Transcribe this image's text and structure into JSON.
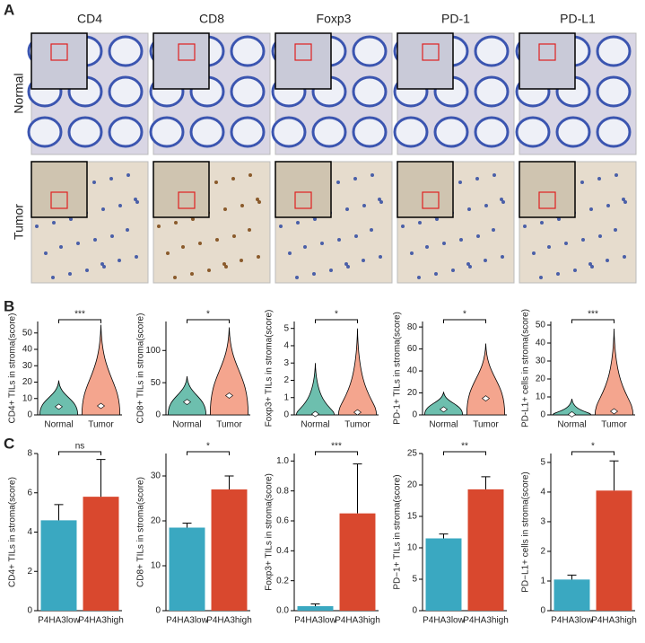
{
  "panel_a": {
    "label": "A",
    "columns": [
      "CD4",
      "CD8",
      "Foxp3",
      "PD-1",
      "PD-L1"
    ],
    "rows": [
      "Normal",
      "Tumor"
    ]
  },
  "panel_b": {
    "label": "B"
  },
  "panel_c": {
    "label": "C"
  },
  "chart_data": [
    {
      "type": "violin",
      "ylabel": "CD4+ TILs in stroma(score)",
      "categories": [
        "Normal",
        "Tumor"
      ],
      "colors": [
        "#6dbfae",
        "#f4a58e"
      ],
      "means": [
        5,
        5.5
      ],
      "maxima": [
        21,
        55
      ],
      "ylim": [
        0,
        57
      ],
      "yticks": [
        0,
        10,
        20,
        30,
        40,
        50
      ],
      "significance": "***"
    },
    {
      "type": "violin",
      "ylabel": "CD8+ TILs in stroma(score)",
      "categories": [
        "Normal",
        "Tumor"
      ],
      "colors": [
        "#6dbfae",
        "#f4a58e"
      ],
      "means": [
        20,
        30
      ],
      "maxima": [
        60,
        136
      ],
      "ylim": [
        0,
        145
      ],
      "yticks": [
        0,
        50,
        100
      ],
      "significance": "*"
    },
    {
      "type": "violin",
      "ylabel": "Foxp3+ TILs in stroma(score)",
      "categories": [
        "Normal",
        "Tumor"
      ],
      "colors": [
        "#6dbfae",
        "#f4a58e"
      ],
      "means": [
        0.05,
        0.15
      ],
      "maxima": [
        3,
        5
      ],
      "ylim": [
        0,
        5.4
      ],
      "yticks": [
        0,
        1,
        2,
        3,
        4,
        5
      ],
      "significance": "*"
    },
    {
      "type": "violin",
      "ylabel": "PD-1+ TILs in stroma(score)",
      "categories": [
        "Normal",
        "Tumor"
      ],
      "colors": [
        "#6dbfae",
        "#f4a58e"
      ],
      "means": [
        5,
        15
      ],
      "maxima": [
        21,
        65
      ],
      "ylim": [
        0,
        85
      ],
      "yticks": [
        0,
        20,
        40,
        60,
        80
      ],
      "significance": "*"
    },
    {
      "type": "violin",
      "ylabel": "PD-L1+ cells in stroma(score)",
      "categories": [
        "Normal",
        "Tumor"
      ],
      "colors": [
        "#6dbfae",
        "#f4a58e"
      ],
      "means": [
        0.3,
        2
      ],
      "maxima": [
        9,
        48
      ],
      "ylim": [
        0,
        52
      ],
      "yticks": [
        0,
        10,
        20,
        30,
        40,
        50
      ],
      "significance": "***"
    },
    {
      "type": "bar",
      "ylabel": "CD4+ TILs in stroma(score)",
      "categories": [
        "P4HA3low",
        "P4HA3high"
      ],
      "colors": [
        "#3aa8c1",
        "#d9482e"
      ],
      "values": [
        4.6,
        5.8
      ],
      "errors": [
        0.8,
        1.9
      ],
      "ylim": [
        0,
        8
      ],
      "yticks": [
        0,
        2,
        4,
        6,
        8
      ],
      "significance": "ns"
    },
    {
      "type": "bar",
      "ylabel": "CD8+ TILs in stroma(score)",
      "categories": [
        "P4HA3low",
        "P4HA3high"
      ],
      "colors": [
        "#3aa8c1",
        "#d9482e"
      ],
      "values": [
        18.5,
        27
      ],
      "errors": [
        1,
        3
      ],
      "ylim": [
        0,
        35
      ],
      "yticks": [
        0,
        10,
        20,
        30
      ],
      "significance": "*"
    },
    {
      "type": "bar",
      "ylabel": "Foxp3+ TILs in stroma(score)",
      "categories": [
        "P4HA3low",
        "P4HA3high"
      ],
      "colors": [
        "#3aa8c1",
        "#d9482e"
      ],
      "values": [
        0.03,
        0.65
      ],
      "errors": [
        0.015,
        0.33
      ],
      "ylim": [
        0,
        1.05
      ],
      "yticks": [
        {
          "value": 0,
          "label": "0.0"
        },
        0.2,
        0.4,
        0.6,
        0.8,
        {
          "value": 1,
          "label": "1.0"
        }
      ],
      "significance": "***"
    },
    {
      "type": "bar",
      "ylabel": "PD−1+ TILs in stroma(score)",
      "categories": [
        "P4HA3low",
        "P4HA3high"
      ],
      "colors": [
        "#3aa8c1",
        "#d9482e"
      ],
      "values": [
        11.5,
        19.3
      ],
      "errors": [
        0.7,
        2
      ],
      "ylim": [
        0,
        25
      ],
      "yticks": [
        0,
        5,
        10,
        15,
        20,
        25
      ],
      "significance": "**"
    },
    {
      "type": "bar",
      "ylabel": "PD−L1+ cells in stroma(score)",
      "categories": [
        "P4HA3low",
        "P4HA3high"
      ],
      "colors": [
        "#3aa8c1",
        "#d9482e"
      ],
      "values": [
        1.05,
        4.05
      ],
      "errors": [
        0.15,
        1.0
      ],
      "ylim": [
        0,
        5.3
      ],
      "yticks": [
        0,
        1,
        2,
        3,
        4,
        5
      ],
      "significance": "*"
    }
  ]
}
